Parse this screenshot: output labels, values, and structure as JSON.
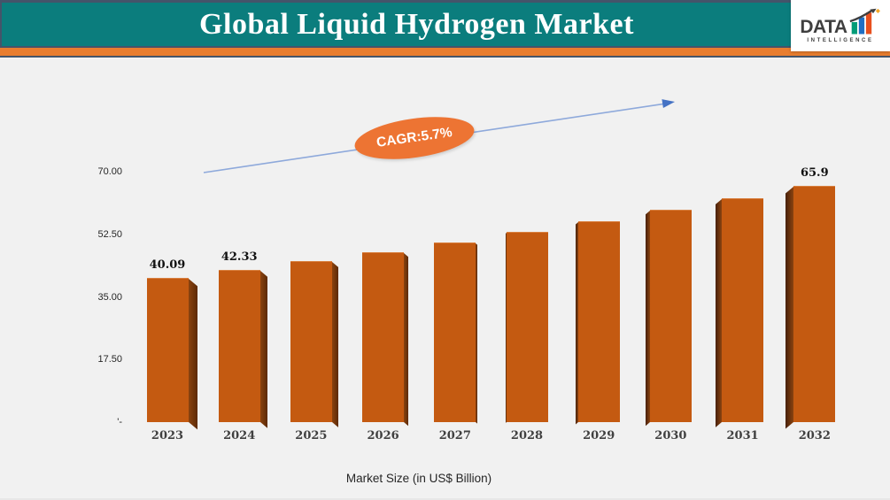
{
  "header": {
    "title": "Global Liquid Hydrogen Market"
  },
  "logo": {
    "brand": "DATA",
    "subtitle": "INTELLIGENCE",
    "icon": "bar-chart-growth-arrow-icon"
  },
  "chart_data": {
    "type": "bar",
    "title": "Global Liquid Hydrogen Market",
    "categories": [
      "2023",
      "2024",
      "2025",
      "2026",
      "2027",
      "2028",
      "2029",
      "2030",
      "2031",
      "2032"
    ],
    "values": [
      40.09,
      42.33,
      44.74,
      47.29,
      49.99,
      52.84,
      55.85,
      59.03,
      62.4,
      65.9
    ],
    "data_labels": [
      "40.09",
      "42.33",
      null,
      null,
      null,
      null,
      null,
      null,
      null,
      "65.9"
    ],
    "xlabel": "Market Size (in US$ Billion)",
    "ylabel": "",
    "ylim": [
      0,
      70
    ],
    "y_ticks": [
      {
        "value": 70,
        "label": "70.00"
      },
      {
        "value": 52.5,
        "label": "52.50"
      },
      {
        "value": 35,
        "label": "35.00"
      },
      {
        "value": 17.5,
        "label": "17.50"
      },
      {
        "value": 0,
        "label": "'-"
      }
    ],
    "grid": false,
    "legend": false,
    "annotation": {
      "cagr_label": "CAGR:5.7%"
    },
    "cagr_percent": 5.7
  },
  "colors": {
    "background": "#f1f1f1",
    "header_teal": "#0b7d7d",
    "header_orange": "#e87d2f",
    "header_border": "#44546a",
    "bar": "#c45a11",
    "bar_side": "#6b3105",
    "arrow_line": "#8ea9db",
    "arrow_head": "#4472c4",
    "ellipse": "#ed7433",
    "axis_text": "#262626",
    "category_text": "#404040",
    "data_label_text": "#111111",
    "logo_bar_green": "#009b77",
    "logo_bar_blue": "#1f6fc4",
    "logo_bar_orange": "#e8501e"
  }
}
